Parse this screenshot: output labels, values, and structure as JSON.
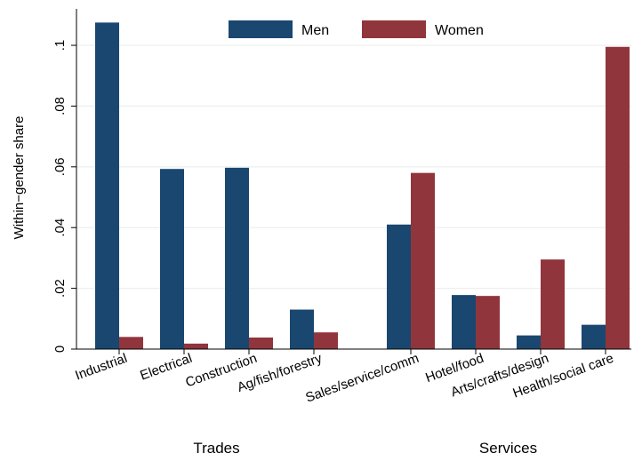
{
  "chart_data": {
    "type": "bar",
    "ylabel": "Within−gender share",
    "ylim": [
      0,
      0.112
    ],
    "yticks": [
      0,
      0.02,
      0.04,
      0.06,
      0.08,
      0.1
    ],
    "ytick_labels": [
      "0",
      ".02",
      ".04",
      ".06",
      ".08",
      ".1"
    ],
    "grid": true,
    "legend_position": "top-center",
    "categories": [
      "Industrial",
      "Electrical",
      "Construction",
      "Ag/fish/forestry",
      "Sales/service/comm",
      "Hotel/food",
      "Arts/crafts/design",
      "Health/social care"
    ],
    "groups": [
      {
        "label": "Trades",
        "categories": [
          0,
          1,
          2,
          3
        ]
      },
      {
        "label": "Services",
        "categories": [
          4,
          5,
          6,
          7
        ]
      }
    ],
    "series": [
      {
        "name": "Men",
        "color": "#1a476f",
        "values": [
          0.1075,
          0.0593,
          0.0597,
          0.013,
          0.041,
          0.0178,
          0.0045,
          0.008
        ]
      },
      {
        "name": "Women",
        "color": "#90353b",
        "values": [
          0.004,
          0.0018,
          0.0038,
          0.0055,
          0.058,
          0.0175,
          0.0295,
          0.0995
        ]
      }
    ]
  }
}
